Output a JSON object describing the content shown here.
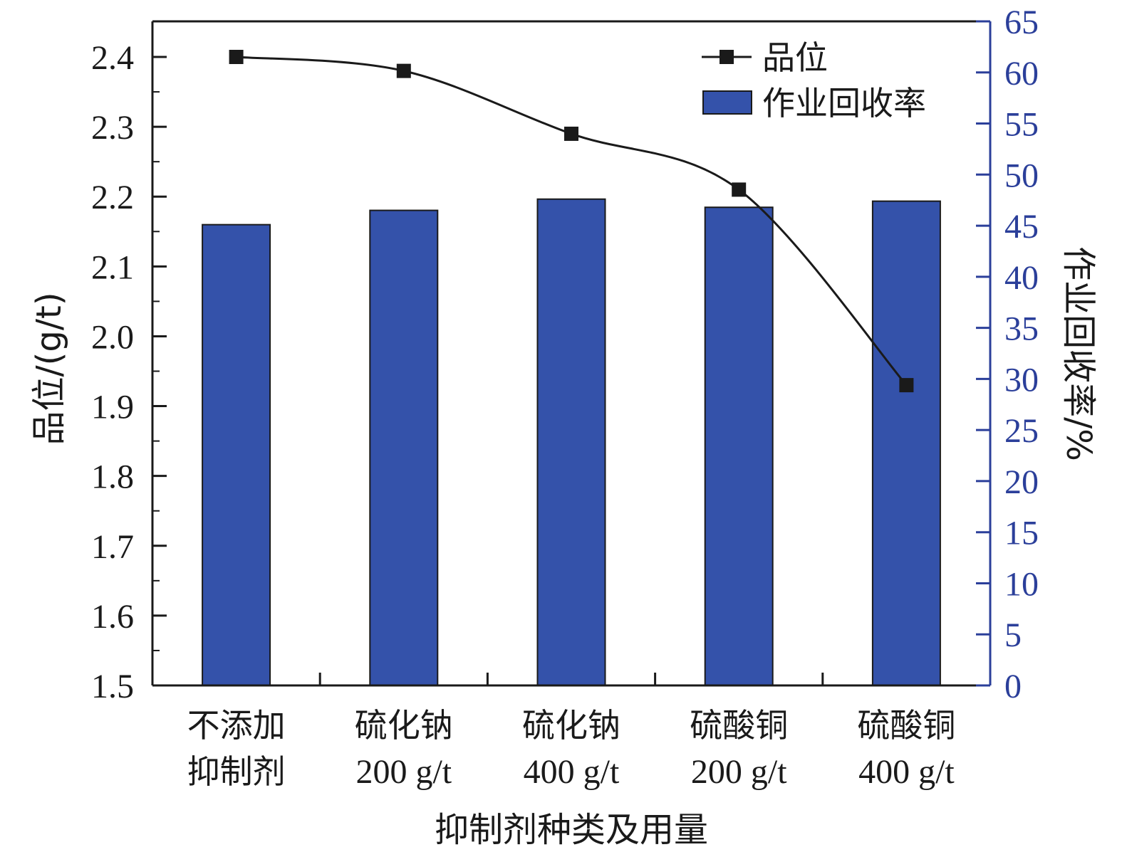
{
  "chart_data": {
    "type": "bar",
    "title": "",
    "xlabel": "抑制剂种类及用量",
    "ylabel_left": "品位/(g/t)",
    "ylabel_right": "作业回收率/%",
    "categories": [
      {
        "line1": "不添加",
        "line2": "抑制剂"
      },
      {
        "line1": "硫化钠",
        "line2": "200 g/t"
      },
      {
        "line1": "硫化钠",
        "line2": "400 g/t"
      },
      {
        "line1": "硫酸铜",
        "line2": "200 g/t"
      },
      {
        "line1": "硫酸铜",
        "line2": "400 g/t"
      }
    ],
    "y_left": {
      "ylim": [
        1.5,
        2.45
      ],
      "ticks": [
        "1.5",
        "1.6",
        "1.7",
        "1.8",
        "1.9",
        "2.0",
        "2.1",
        "2.2",
        "2.3",
        "2.4"
      ]
    },
    "y_right": {
      "ylim": [
        0,
        65
      ],
      "ticks": [
        "0",
        "5",
        "10",
        "15",
        "20",
        "25",
        "30",
        "35",
        "40",
        "45",
        "50",
        "55",
        "60",
        "65"
      ]
    },
    "series": [
      {
        "name": "品位",
        "kind": "line",
        "axis": "left",
        "values": [
          2.4,
          2.38,
          2.29,
          2.21,
          1.93
        ]
      },
      {
        "name": "作业回收率",
        "kind": "bar",
        "axis": "right",
        "values": [
          45.1,
          46.5,
          47.6,
          46.8,
          47.4
        ]
      }
    ],
    "legend": {
      "position": "top-right"
    },
    "grid": false,
    "colors": {
      "bar": "#3452aa",
      "line": "#1a1a1a",
      "right_axis": "#2b3f9a"
    }
  }
}
